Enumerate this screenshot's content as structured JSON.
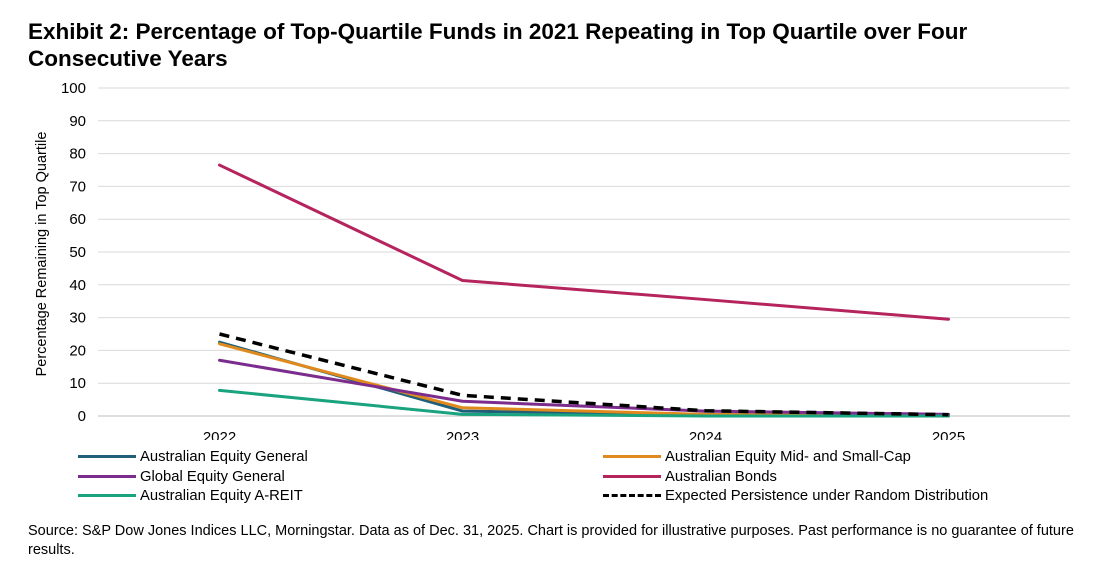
{
  "title": "Exhibit 2: Percentage of Top-Quartile Funds in 2021 Repeating in Top Quartile over Four Consecutive Years",
  "source": "Source: S&P Dow Jones Indices LLC, Morningstar.  Data as of Dec. 31, 2025.  Chart is provided for illustrative purposes.  Past performance is no guarantee of future results.",
  "chart_data": {
    "type": "line",
    "title": "Exhibit 2: Percentage of Top-Quartile Funds in 2021 Repeating in Top Quartile over Four Consecutive Years",
    "xlabel": "",
    "ylabel": "Percentage Remaining  in Top Quartile",
    "categories": [
      "2022",
      "2023",
      "2024",
      "2025"
    ],
    "ylim": [
      0,
      100
    ],
    "yticks": [
      "0",
      "10",
      "20",
      "30",
      "40",
      "50",
      "60",
      "70",
      "80",
      "90",
      "100"
    ],
    "grid": "horizontal",
    "legend_position": "bottom",
    "series": [
      {
        "name": "Australian Equity General",
        "color": "#1f5f7a",
        "dashed": false,
        "values": [
          22.5,
          1.5,
          0.5,
          0
        ]
      },
      {
        "name": "Australian Equity Mid- and Small-Cap",
        "color": "#e08a1e",
        "dashed": false,
        "values": [
          22,
          2.5,
          0.5,
          0
        ]
      },
      {
        "name": "Global Equity General",
        "color": "#7b2c8c",
        "dashed": false,
        "values": [
          17,
          4.5,
          1.5,
          0.5
        ]
      },
      {
        "name": "Australian Bonds",
        "color": "#b5245c",
        "dashed": false,
        "values": [
          76.5,
          41.3,
          35.5,
          29.5
        ]
      },
      {
        "name": "Australian Equity A-REIT",
        "color": "#1aa37f",
        "dashed": false,
        "values": [
          7.8,
          0.5,
          0,
          0
        ]
      },
      {
        "name": "Expected Persistence under Random Distribution",
        "color": "#000000",
        "dashed": true,
        "values": [
          25,
          6.3,
          1.6,
          0.4
        ]
      }
    ]
  }
}
